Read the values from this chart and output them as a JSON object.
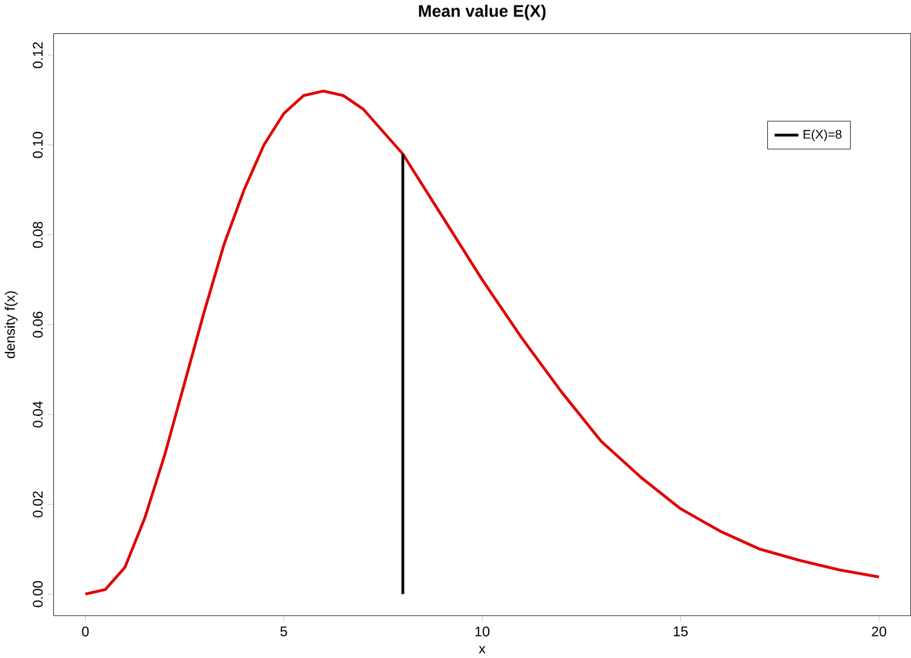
{
  "chart_data": {
    "type": "line",
    "title": "Mean value E(X)",
    "xlabel": "x",
    "ylabel": "density f(x)",
    "series": [
      {
        "color": "#e00000",
        "x": [
          0,
          0.5,
          1,
          1.5,
          2,
          2.5,
          3,
          3.5,
          4,
          4.5,
          5,
          5.5,
          6,
          6.5,
          7,
          7.5,
          8,
          9,
          10,
          11,
          12,
          13,
          14,
          15,
          16,
          17,
          18,
          19,
          20
        ],
        "values": [
          0,
          0.001,
          0.006,
          0.017,
          0.031,
          0.047,
          0.063,
          0.078,
          0.09,
          0.1,
          0.107,
          0.111,
          0.112,
          0.111,
          0.108,
          0.103,
          0.098,
          0.084,
          0.07,
          0.057,
          0.045,
          0.034,
          0.026,
          0.019,
          0.014,
          0.01,
          0.0075,
          0.0054,
          0.0038
        ]
      },
      {
        "name": "E(X)=8",
        "color": "#000000",
        "x": [
          8,
          8
        ],
        "values": [
          0,
          0.098
        ]
      }
    ],
    "xlim": [
      -0.8,
      20.8
    ],
    "ylim": [
      -0.0048,
      0.1248
    ],
    "xticks": [
      0,
      5,
      10,
      15,
      20
    ],
    "yticks": [
      {
        "value": 0,
        "label": "0.00"
      },
      0.02,
      0.04,
      0.06,
      0.08,
      {
        "value": 0.1,
        "label": "0.10"
      },
      0.12
    ],
    "legend": "top right",
    "grid": false,
    "marker": "none",
    "line_style": "solid"
  }
}
